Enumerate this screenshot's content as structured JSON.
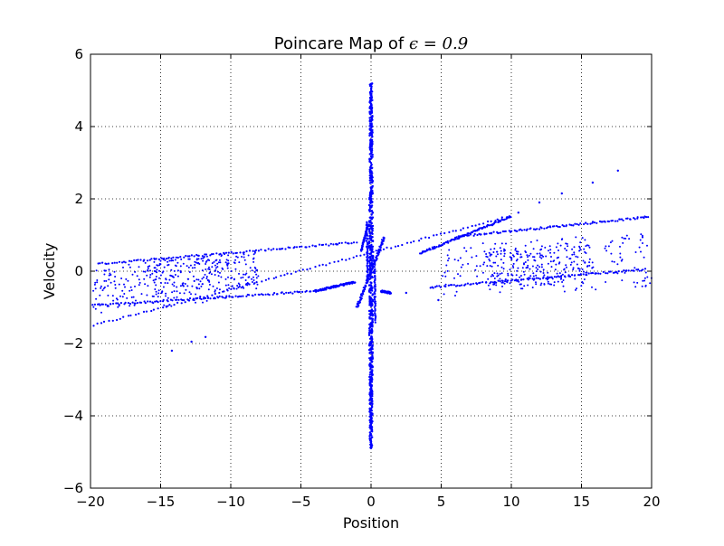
{
  "chart_data": {
    "type": "scatter",
    "title": "Poincare Map of",
    "title_math": "ϵ = 0.9",
    "xlabel": "Position",
    "ylabel": "Velocity",
    "xlim": [
      -20,
      20
    ],
    "ylim": [
      -6,
      6
    ],
    "xticks": [
      -20,
      -15,
      -10,
      -5,
      0,
      5,
      10,
      15,
      20
    ],
    "yticks": [
      -6,
      -4,
      -2,
      0,
      2,
      4,
      6
    ],
    "xtick_labels": [
      "−20",
      "−15",
      "−10",
      "−5",
      "0",
      "5",
      "10",
      "15",
      "20"
    ],
    "ytick_labels": [
      "−6",
      "−4",
      "−2",
      "0",
      "2",
      "4",
      "6"
    ],
    "grid": true,
    "legend": "none",
    "color": "#0000ff",
    "series": [
      {
        "segments": [
          {
            "x0": -19.8,
            "y0": -1.5,
            "x1": 9.9,
            "y1": 1.52
          },
          {
            "x0": -19.8,
            "y0": -0.95,
            "x1": -4.0,
            "y1": -0.55
          },
          {
            "x0": -4.0,
            "y0": -0.55,
            "x1": -1.2,
            "y1": -0.3
          },
          {
            "x0": -19.5,
            "y0": 0.2,
            "x1": -1.0,
            "y1": 0.8
          },
          {
            "x0": 4.2,
            "y0": -0.45,
            "x1": 19.5,
            "y1": 0.05
          },
          {
            "x0": 6.0,
            "y0": 0.95,
            "x1": 19.8,
            "y1": 1.5
          },
          {
            "x0": 3.5,
            "y0": 0.5,
            "x1": 10.0,
            "y1": 1.52
          },
          {
            "x0": -1.0,
            "y0": -1.0,
            "x1": 0.95,
            "y1": 0.95
          }
        ],
        "clouds": [
          {
            "x": [
              -19.8,
              -10.0
            ],
            "y": [
              -1.0,
              0.35
            ]
          },
          {
            "x": [
              -16.0,
              -8.0
            ],
            "y": [
              -0.6,
              0.4
            ]
          },
          {
            "x": [
              5.0,
              20.0
            ],
            "y": [
              -0.6,
              0.9
            ]
          },
          {
            "x": [
              8.0,
              16.0
            ],
            "y": [
              -0.4,
              0.7
            ]
          }
        ],
        "column": {
          "x": 0.0,
          "y": [
            -4.9,
            5.2
          ]
        },
        "branches": [
          {
            "x0": -0.25,
            "y0": -0.3,
            "x1": -0.3,
            "y1": 1.35
          },
          {
            "x0": -0.7,
            "y0": 0.55,
            "x1": -0.2,
            "y1": 1.3
          },
          {
            "x0": 0.25,
            "y0": 0.3,
            "x1": 0.3,
            "y1": -1.4
          },
          {
            "x0": 0.7,
            "y0": -0.55,
            "x1": 1.4,
            "y1": -0.6
          }
        ],
        "outliers": [
          [
            -14.2,
            -2.2
          ],
          [
            -12.8,
            -1.95
          ],
          [
            -11.8,
            -1.82
          ],
          [
            10.5,
            1.62
          ],
          [
            12.0,
            1.9
          ],
          [
            13.6,
            2.15
          ],
          [
            15.8,
            2.45
          ],
          [
            17.6,
            2.78
          ],
          [
            -10.5,
            0.5
          ],
          [
            -2.5,
            0.75
          ],
          [
            4.8,
            -0.8
          ],
          [
            2.5,
            -0.6
          ]
        ]
      }
    ]
  }
}
